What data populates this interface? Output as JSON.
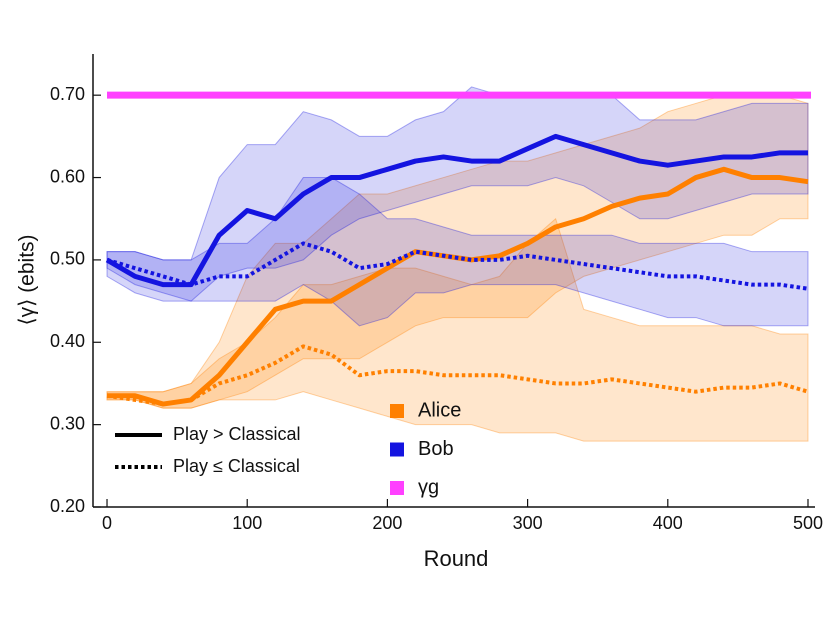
{
  "chart_data": {
    "type": "line",
    "xlabel": "Round",
    "ylabel": "⟨γ⟩ (ebits)",
    "xlim": [
      -10,
      505
    ],
    "ylim": [
      0.2,
      0.75
    ],
    "xticks": [
      0,
      100,
      200,
      300,
      400,
      500
    ],
    "yticks": [
      {
        "value": 0.2,
        "label": "0.20"
      },
      {
        "value": 0.3,
        "label": "0.30"
      },
      {
        "value": 0.4,
        "label": "0.40"
      },
      {
        "value": 0.5,
        "label": "0.50"
      },
      {
        "value": 0.6,
        "label": "0.60"
      },
      {
        "value": 0.7,
        "label": "0.70"
      }
    ],
    "x": [
      0,
      20,
      40,
      60,
      80,
      100,
      120,
      140,
      160,
      180,
      200,
      220,
      240,
      260,
      280,
      300,
      320,
      340,
      360,
      380,
      400,
      420,
      440,
      460,
      480,
      500
    ],
    "line_styles": [
      {
        "label": "Play > Classical",
        "dash": "solid"
      },
      {
        "label": "Play ≤ Classical",
        "dash": "dotted"
      }
    ],
    "series": [
      {
        "name": "Alice",
        "color": "#ff8000",
        "lines": [
          {
            "values": [
              0.335,
              0.335,
              0.325,
              0.33,
              0.36,
              0.4,
              0.44,
              0.45,
              0.45,
              0.47,
              0.49,
              0.51,
              0.505,
              0.5,
              0.505,
              0.52,
              0.54,
              0.55,
              0.565,
              0.575,
              0.58,
              0.6,
              0.61,
              0.6,
              0.6,
              0.595
            ],
            "lower": [
              0.33,
              0.33,
              0.32,
              0.32,
              0.33,
              0.34,
              0.36,
              0.38,
              0.38,
              0.38,
              0.4,
              0.42,
              0.43,
              0.43,
              0.43,
              0.43,
              0.46,
              0.48,
              0.49,
              0.5,
              0.51,
              0.52,
              0.53,
              0.53,
              0.55,
              0.55
            ],
            "upper": [
              0.34,
              0.34,
              0.34,
              0.35,
              0.4,
              0.48,
              0.52,
              0.52,
              0.55,
              0.58,
              0.58,
              0.59,
              0.6,
              0.61,
              0.62,
              0.62,
              0.63,
              0.64,
              0.65,
              0.66,
              0.68,
              0.69,
              0.7,
              0.7,
              0.7,
              0.69
            ]
          },
          {
            "values": [
              0.335,
              0.33,
              0.325,
              0.33,
              0.35,
              0.36,
              0.375,
              0.395,
              0.385,
              0.36,
              0.365,
              0.365,
              0.36,
              0.36,
              0.36,
              0.355,
              0.35,
              0.35,
              0.355,
              0.35,
              0.345,
              0.34,
              0.345,
              0.345,
              0.35,
              0.34
            ],
            "lower": [
              0.33,
              0.33,
              0.32,
              0.32,
              0.33,
              0.33,
              0.33,
              0.34,
              0.33,
              0.32,
              0.31,
              0.3,
              0.3,
              0.3,
              0.29,
              0.29,
              0.29,
              0.28,
              0.28,
              0.28,
              0.28,
              0.28,
              0.28,
              0.28,
              0.28,
              0.28
            ],
            "upper": [
              0.34,
              0.34,
              0.34,
              0.35,
              0.38,
              0.4,
              0.43,
              0.47,
              0.47,
              0.48,
              0.49,
              0.49,
              0.48,
              0.47,
              0.48,
              0.52,
              0.55,
              0.44,
              0.43,
              0.42,
              0.42,
              0.42,
              0.42,
              0.42,
              0.41,
              0.41
            ]
          }
        ]
      },
      {
        "name": "Bob",
        "color": "#1414e0",
        "lines": [
          {
            "values": [
              0.5,
              0.48,
              0.47,
              0.47,
              0.53,
              0.56,
              0.55,
              0.58,
              0.6,
              0.6,
              0.61,
              0.62,
              0.625,
              0.62,
              0.62,
              0.635,
              0.65,
              0.64,
              0.63,
              0.62,
              0.615,
              0.62,
              0.625,
              0.625,
              0.63,
              0.63
            ],
            "lower": [
              0.48,
              0.46,
              0.45,
              0.45,
              0.48,
              0.49,
              0.49,
              0.5,
              0.53,
              0.55,
              0.56,
              0.57,
              0.58,
              0.59,
              0.59,
              0.59,
              0.6,
              0.59,
              0.57,
              0.55,
              0.55,
              0.56,
              0.57,
              0.58,
              0.58,
              0.58
            ],
            "upper": [
              0.51,
              0.51,
              0.5,
              0.5,
              0.6,
              0.64,
              0.64,
              0.68,
              0.67,
              0.65,
              0.65,
              0.67,
              0.68,
              0.71,
              0.7,
              0.7,
              0.7,
              0.7,
              0.7,
              0.67,
              0.67,
              0.67,
              0.68,
              0.69,
              0.69,
              0.69
            ]
          },
          {
            "values": [
              0.5,
              0.49,
              0.48,
              0.47,
              0.48,
              0.48,
              0.5,
              0.52,
              0.51,
              0.49,
              0.495,
              0.51,
              0.505,
              0.5,
              0.5,
              0.505,
              0.5,
              0.495,
              0.49,
              0.485,
              0.48,
              0.48,
              0.475,
              0.47,
              0.47,
              0.465
            ],
            "lower": [
              0.49,
              0.47,
              0.46,
              0.45,
              0.45,
              0.45,
              0.45,
              0.47,
              0.45,
              0.42,
              0.43,
              0.46,
              0.46,
              0.47,
              0.47,
              0.47,
              0.47,
              0.46,
              0.45,
              0.44,
              0.43,
              0.43,
              0.42,
              0.42,
              0.42,
              0.42
            ],
            "upper": [
              0.51,
              0.51,
              0.5,
              0.5,
              0.52,
              0.52,
              0.55,
              0.6,
              0.6,
              0.58,
              0.55,
              0.55,
              0.54,
              0.53,
              0.53,
              0.53,
              0.53,
              0.53,
              0.53,
              0.52,
              0.52,
              0.52,
              0.52,
              0.51,
              0.51,
              0.51
            ]
          }
        ]
      }
    ],
    "reference": {
      "name": "γg",
      "color": "#ff40ff",
      "value": 0.7
    }
  }
}
